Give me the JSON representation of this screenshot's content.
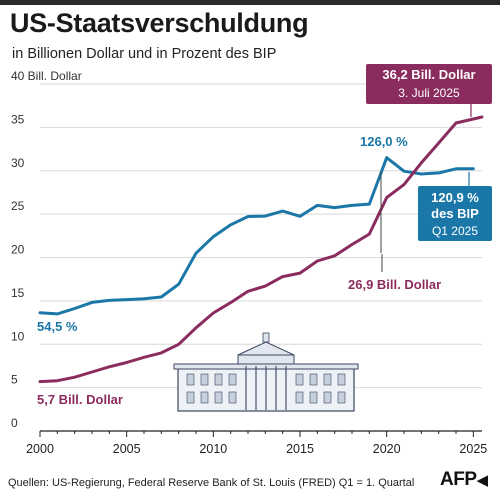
{
  "header": {
    "title": "US-Staatsverschuldung",
    "subtitle": "in Billionen Dollar und in Prozent des BIP"
  },
  "footer": {
    "source": "Quellen: US-Regierung, Federal Reserve Bank of St. Louis (FRED)   Q1 = 1. Quartal",
    "logo_text": "AFP"
  },
  "colors": {
    "debt": "#8b2c5e",
    "gdp_ratio": "#1a77a8",
    "axis": "#222222",
    "grid": "#d9d9d9"
  },
  "chart_data": {
    "type": "line",
    "title": "US-Staatsverschuldung",
    "subtitle": "in Billionen Dollar und in Prozent des BIP",
    "ylabel": "40 Bill. Dollar",
    "xlim": [
      2000,
      2025.5
    ],
    "ylim": [
      0,
      40
    ],
    "x_ticks": [
      2000,
      2005,
      2010,
      2015,
      2020,
      2025
    ],
    "y_ticks": [
      0,
      5,
      10,
      15,
      20,
      25,
      30,
      35,
      40
    ],
    "y_tick_labels": [
      "0",
      "5",
      "10",
      "15",
      "20",
      "25",
      "30",
      "35",
      "40 Bill. Dollar"
    ],
    "grid": true,
    "series": [
      {
        "id": "debt",
        "unit": "Billionen Dollar",
        "x": [
          2000,
          2001,
          2002,
          2003,
          2004,
          2005,
          2006,
          2007,
          2008,
          2009,
          2010,
          2011,
          2012,
          2013,
          2014,
          2015,
          2016,
          2017,
          2018,
          2019,
          2020,
          2021,
          2022,
          2023,
          2024,
          2025.5
        ],
        "values": [
          5.7,
          5.8,
          6.2,
          6.8,
          7.4,
          7.9,
          8.5,
          9.0,
          10.0,
          11.9,
          13.6,
          14.8,
          16.1,
          16.7,
          17.8,
          18.2,
          19.6,
          20.2,
          21.5,
          22.7,
          26.9,
          28.4,
          30.9,
          33.2,
          35.5,
          36.2
        ]
      },
      {
        "id": "gdp_ratio",
        "unit": "% des BIP",
        "x": [
          2000,
          2001,
          2002,
          2003,
          2004,
          2005,
          2006,
          2007,
          2008,
          2009,
          2010,
          2011,
          2012,
          2013,
          2014,
          2015,
          2016,
          2017,
          2018,
          2019,
          2020,
          2021,
          2022,
          2023,
          2024,
          2025
        ],
        "values": [
          54.5,
          54.0,
          56.5,
          59.3,
          60.2,
          60.6,
          61.0,
          61.8,
          67.7,
          82.0,
          89.6,
          95.1,
          98.9,
          99.1,
          101.4,
          99.0,
          104.0,
          103.0,
          104.0,
          104.6,
          126.0,
          119.8,
          118.5,
          119.0,
          120.9,
          120.9
        ],
        "note": "plotted on the same axis as the debt series (each 4 percentage points = 1 gridline unit)"
      }
    ],
    "annotations": {
      "debt_start": "5,7 Bill. Dollar",
      "debt_2020": "26,9 Bill. Dollar",
      "debt_latest_value": "36,2 Bill. Dollar",
      "debt_latest_date": "3. Juli 2025",
      "gdp_start": "54,5 %",
      "gdp_2020": "126,0 %",
      "gdp_latest_line1": "120,9 %",
      "gdp_latest_line2": "des BIP",
      "gdp_latest_line3": "Q1 2025"
    }
  }
}
